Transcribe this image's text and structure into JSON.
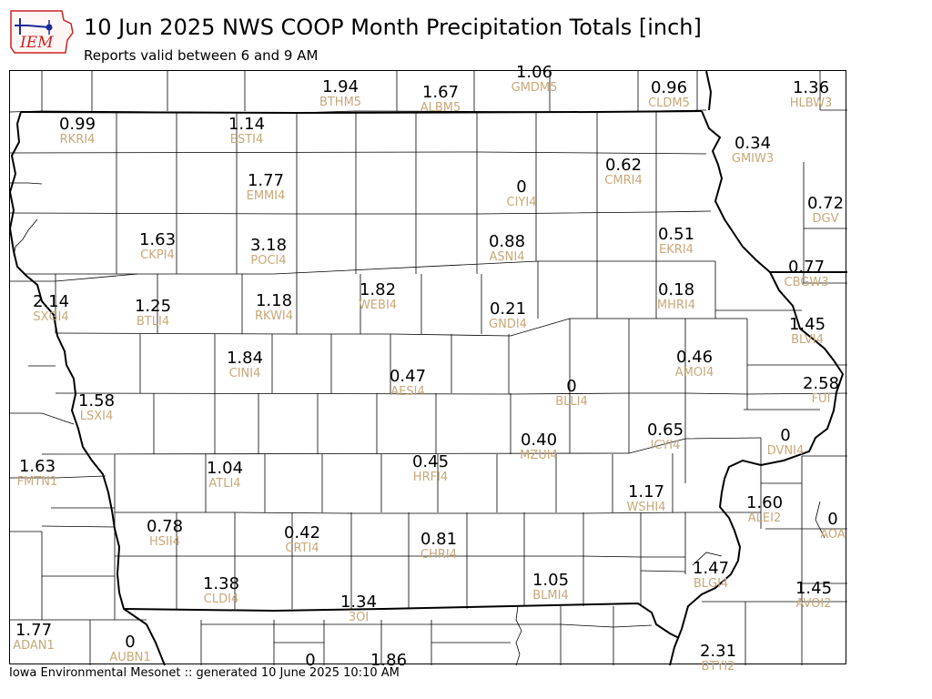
{
  "header": {
    "title": "10 Jun 2025 NWS COOP Month Precipitation Totals [inch]",
    "subtitle": "Reports valid between 6 and 9 AM",
    "logo_text": "IEM"
  },
  "footer": {
    "text": "Iowa Environmental Mesonet :: generated 10 June 2025 10:10 AM"
  },
  "colors": {
    "value_text": "#000000",
    "station_id_text": "#c8a878",
    "county_lines": "#000000",
    "logo_red": "#cc2222",
    "logo_blue": "#1a2a9a"
  },
  "map": {
    "units": "inch",
    "stations": [
      {
        "id": "BTHM5",
        "value": "1.94"
      },
      {
        "id": "ALBM5",
        "value": "1.67"
      },
      {
        "id": "GMDM5",
        "value": "1.06"
      },
      {
        "id": "CLDM5",
        "value": "0.96"
      },
      {
        "id": "HLBW3",
        "value": "1.36"
      },
      {
        "id": "RKRI4",
        "value": "0.99"
      },
      {
        "id": "ESTI4",
        "value": "1.14"
      },
      {
        "id": "GMIW3",
        "value": "0.34"
      },
      {
        "id": "CMRI4",
        "value": "0.62"
      },
      {
        "id": "EMMI4",
        "value": "1.77"
      },
      {
        "id": "CIYI4",
        "value": "0"
      },
      {
        "id": "DGV",
        "value": "0.72"
      },
      {
        "id": "CKPI4",
        "value": "1.63"
      },
      {
        "id": "POCI4",
        "value": "3.18"
      },
      {
        "id": "ASNI4",
        "value": "0.88"
      },
      {
        "id": "EKRI4",
        "value": "0.51"
      },
      {
        "id": "CBGW3",
        "value": "0.77"
      },
      {
        "id": "SXGI4",
        "value": "2.14"
      },
      {
        "id": "BTLI4",
        "value": "1.25"
      },
      {
        "id": "RKWI4",
        "value": "1.18"
      },
      {
        "id": "WEBI4",
        "value": "1.82"
      },
      {
        "id": "GNDI4",
        "value": "0.21"
      },
      {
        "id": "MHRI4",
        "value": "0.18"
      },
      {
        "id": "BLVI4",
        "value": "1.45"
      },
      {
        "id": "CINI4",
        "value": "1.84"
      },
      {
        "id": "AMOI4",
        "value": "0.46"
      },
      {
        "id": "AESI4",
        "value": "0.47"
      },
      {
        "id": "BLLI4",
        "value": "0"
      },
      {
        "id": "FUI",
        "value": "2.58"
      },
      {
        "id": "LSXI4",
        "value": "1.58"
      },
      {
        "id": "ICYI4",
        "value": "0.65"
      },
      {
        "id": "DVNI4",
        "value": "0"
      },
      {
        "id": "MZUI4",
        "value": "0.40"
      },
      {
        "id": "HRFI4",
        "value": "0.45"
      },
      {
        "id": "FMTN1",
        "value": "1.63"
      },
      {
        "id": "ATLI4",
        "value": "1.04"
      },
      {
        "id": "WSHI4",
        "value": "1.17"
      },
      {
        "id": "ALEI2",
        "value": "1.60"
      },
      {
        "id": "AOA",
        "value": "0"
      },
      {
        "id": "HSII4",
        "value": "0.78"
      },
      {
        "id": "CRTI4",
        "value": "0.42"
      },
      {
        "id": "CHRI4",
        "value": "0.81"
      },
      {
        "id": "BLGI4",
        "value": "1.47"
      },
      {
        "id": "CLDI4",
        "value": "1.38"
      },
      {
        "id": "BLMI4",
        "value": "1.05"
      },
      {
        "id": "AVOI2",
        "value": "1.45"
      },
      {
        "id": "3OI",
        "value": "1.34"
      },
      {
        "id": "ADAN1",
        "value": "1.77"
      },
      {
        "id": "AUBN1",
        "value": "0"
      },
      {
        "id": "BTYI2",
        "value": "2.31"
      },
      {
        "id": "",
        "value": "0"
      },
      {
        "id": "",
        "value": "1.86"
      }
    ]
  }
}
